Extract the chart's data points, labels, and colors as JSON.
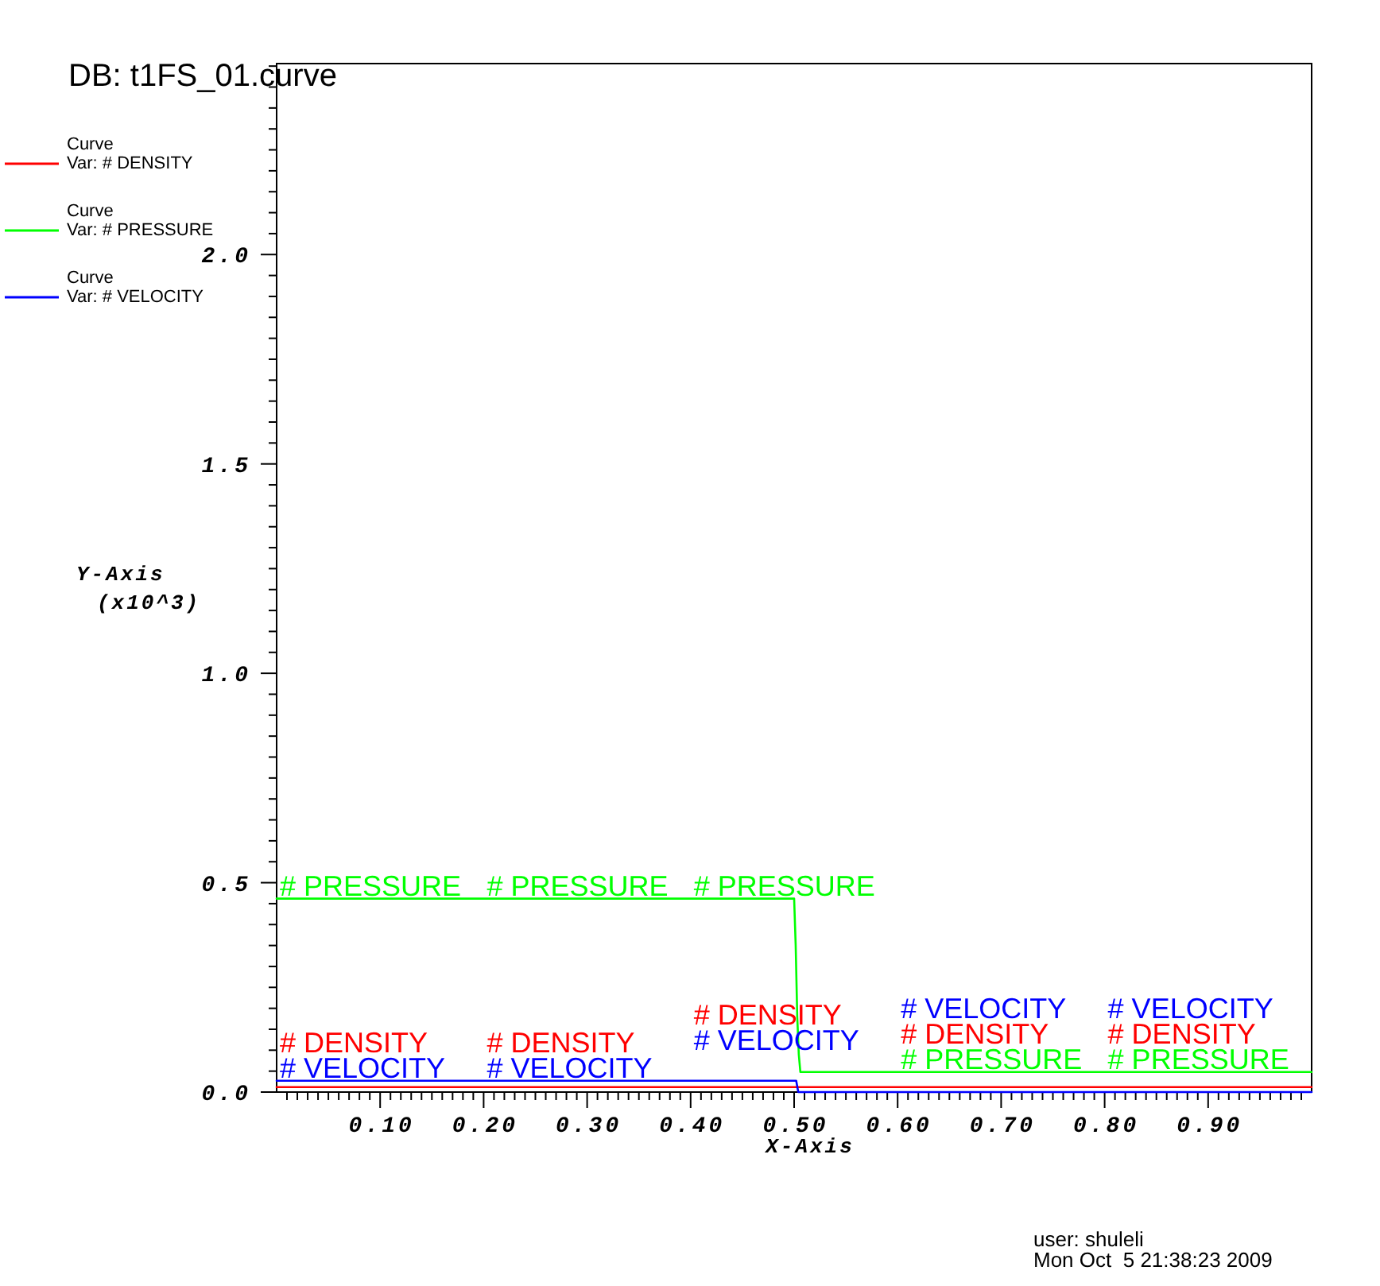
{
  "chart_data": {
    "type": "line",
    "title": "DB: t1FS_01.curve",
    "xlabel": "X-Axis",
    "ylabel": "Y-Axis\n(x10^3)",
    "xlim": [
      0,
      1
    ],
    "ylim": [
      0,
      2.456
    ],
    "xticks": [
      {
        "value": 0.01,
        "label": null
      },
      {
        "value": 0.02,
        "label": null
      },
      {
        "value": 0.03,
        "label": null
      },
      {
        "value": 0.04,
        "label": null
      },
      {
        "value": 0.05,
        "label": null
      },
      {
        "value": 0.06,
        "label": null
      },
      {
        "value": 0.07,
        "label": null
      },
      {
        "value": 0.08,
        "label": null
      },
      {
        "value": 0.09,
        "label": null
      },
      {
        "value": 0.1,
        "label": "0.10"
      },
      {
        "value": 0.11,
        "label": null
      },
      {
        "value": 0.12,
        "label": null
      },
      {
        "value": 0.13,
        "label": null
      },
      {
        "value": 0.14,
        "label": null
      },
      {
        "value": 0.15,
        "label": null
      },
      {
        "value": 0.16,
        "label": null
      },
      {
        "value": 0.17,
        "label": null
      },
      {
        "value": 0.18,
        "label": null
      },
      {
        "value": 0.19,
        "label": null
      },
      {
        "value": 0.2,
        "label": "0.20"
      },
      {
        "value": 0.21,
        "label": null
      },
      {
        "value": 0.22,
        "label": null
      },
      {
        "value": 0.23,
        "label": null
      },
      {
        "value": 0.24,
        "label": null
      },
      {
        "value": 0.25,
        "label": null
      },
      {
        "value": 0.26,
        "label": null
      },
      {
        "value": 0.27,
        "label": null
      },
      {
        "value": 0.28,
        "label": null
      },
      {
        "value": 0.29,
        "label": null
      },
      {
        "value": 0.3,
        "label": "0.30"
      },
      {
        "value": 0.31,
        "label": null
      },
      {
        "value": 0.32,
        "label": null
      },
      {
        "value": 0.33,
        "label": null
      },
      {
        "value": 0.34,
        "label": null
      },
      {
        "value": 0.35,
        "label": null
      },
      {
        "value": 0.36,
        "label": null
      },
      {
        "value": 0.37,
        "label": null
      },
      {
        "value": 0.38,
        "label": null
      },
      {
        "value": 0.39,
        "label": null
      },
      {
        "value": 0.4,
        "label": "0.40"
      },
      {
        "value": 0.41,
        "label": null
      },
      {
        "value": 0.42,
        "label": null
      },
      {
        "value": 0.43,
        "label": null
      },
      {
        "value": 0.44,
        "label": null
      },
      {
        "value": 0.45,
        "label": null
      },
      {
        "value": 0.46,
        "label": null
      },
      {
        "value": 0.47,
        "label": null
      },
      {
        "value": 0.48,
        "label": null
      },
      {
        "value": 0.49,
        "label": null
      },
      {
        "value": 0.5,
        "label": "0.50"
      },
      {
        "value": 0.51,
        "label": null
      },
      {
        "value": 0.52,
        "label": null
      },
      {
        "value": 0.53,
        "label": null
      },
      {
        "value": 0.54,
        "label": null
      },
      {
        "value": 0.55,
        "label": null
      },
      {
        "value": 0.56,
        "label": null
      },
      {
        "value": 0.57,
        "label": null
      },
      {
        "value": 0.58,
        "label": null
      },
      {
        "value": 0.59,
        "label": null
      },
      {
        "value": 0.6,
        "label": "0.60"
      },
      {
        "value": 0.61,
        "label": null
      },
      {
        "value": 0.62,
        "label": null
      },
      {
        "value": 0.63,
        "label": null
      },
      {
        "value": 0.64,
        "label": null
      },
      {
        "value": 0.65,
        "label": null
      },
      {
        "value": 0.66,
        "label": null
      },
      {
        "value": 0.67,
        "label": null
      },
      {
        "value": 0.68,
        "label": null
      },
      {
        "value": 0.69,
        "label": null
      },
      {
        "value": 0.7,
        "label": "0.70"
      },
      {
        "value": 0.71,
        "label": null
      },
      {
        "value": 0.72,
        "label": null
      },
      {
        "value": 0.73,
        "label": null
      },
      {
        "value": 0.74,
        "label": null
      },
      {
        "value": 0.75,
        "label": null
      },
      {
        "value": 0.76,
        "label": null
      },
      {
        "value": 0.77,
        "label": null
      },
      {
        "value": 0.78,
        "label": null
      },
      {
        "value": 0.79,
        "label": null
      },
      {
        "value": 0.8,
        "label": "0.80"
      },
      {
        "value": 0.81,
        "label": null
      },
      {
        "value": 0.82,
        "label": null
      },
      {
        "value": 0.83,
        "label": null
      },
      {
        "value": 0.84,
        "label": null
      },
      {
        "value": 0.85,
        "label": null
      },
      {
        "value": 0.86,
        "label": null
      },
      {
        "value": 0.87,
        "label": null
      },
      {
        "value": 0.88,
        "label": null
      },
      {
        "value": 0.89,
        "label": null
      },
      {
        "value": 0.9,
        "label": "0.90"
      },
      {
        "value": 0.91,
        "label": null
      },
      {
        "value": 0.92,
        "label": null
      },
      {
        "value": 0.93,
        "label": null
      },
      {
        "value": 0.94,
        "label": null
      },
      {
        "value": 0.95,
        "label": null
      },
      {
        "value": 0.96,
        "label": null
      },
      {
        "value": 0.97,
        "label": null
      },
      {
        "value": 0.98,
        "label": null
      },
      {
        "value": 0.99,
        "label": null
      }
    ],
    "yticks": [
      {
        "value": 0,
        "label": "0.0"
      },
      {
        "value": 0.05,
        "label": null
      },
      {
        "value": 0.1,
        "label": null
      },
      {
        "value": 0.15,
        "label": null
      },
      {
        "value": 0.2,
        "label": null
      },
      {
        "value": 0.25,
        "label": null
      },
      {
        "value": 0.3,
        "label": null
      },
      {
        "value": 0.35,
        "label": null
      },
      {
        "value": 0.4,
        "label": null
      },
      {
        "value": 0.45,
        "label": null
      },
      {
        "value": 0.5,
        "label": "0.5"
      },
      {
        "value": 0.55,
        "label": null
      },
      {
        "value": 0.6,
        "label": null
      },
      {
        "value": 0.65,
        "label": null
      },
      {
        "value": 0.7,
        "label": null
      },
      {
        "value": 0.75,
        "label": null
      },
      {
        "value": 0.8,
        "label": null
      },
      {
        "value": 0.85,
        "label": null
      },
      {
        "value": 0.9,
        "label": null
      },
      {
        "value": 0.95,
        "label": null
      },
      {
        "value": 1,
        "label": "1.0"
      },
      {
        "value": 1.05,
        "label": null
      },
      {
        "value": 1.1,
        "label": null
      },
      {
        "value": 1.15,
        "label": null
      },
      {
        "value": 1.2,
        "label": null
      },
      {
        "value": 1.25,
        "label": null
      },
      {
        "value": 1.3,
        "label": null
      },
      {
        "value": 1.35,
        "label": null
      },
      {
        "value": 1.4,
        "label": null
      },
      {
        "value": 1.45,
        "label": null
      },
      {
        "value": 1.5,
        "label": "1.5"
      },
      {
        "value": 1.55,
        "label": null
      },
      {
        "value": 1.6,
        "label": null
      },
      {
        "value": 1.65,
        "label": null
      },
      {
        "value": 1.7,
        "label": null
      },
      {
        "value": 1.75,
        "label": null
      },
      {
        "value": 1.8,
        "label": null
      },
      {
        "value": 1.85,
        "label": null
      },
      {
        "value": 1.9,
        "label": null
      },
      {
        "value": 1.95,
        "label": null
      },
      {
        "value": 2,
        "label": "2.0"
      },
      {
        "value": 2.05,
        "label": null
      },
      {
        "value": 2.1,
        "label": null
      },
      {
        "value": 2.15,
        "label": null
      },
      {
        "value": 2.2,
        "label": null
      },
      {
        "value": 2.25,
        "label": null
      },
      {
        "value": 2.3,
        "label": null
      },
      {
        "value": 2.35,
        "label": null
      },
      {
        "value": 2.4,
        "label": null
      },
      {
        "value": 2.45,
        "label": null
      }
    ],
    "legend": "top left",
    "series": [
      {
        "name": "Curve\nVar: # DENSITY",
        "color": "#ff0000",
        "x": [
          0,
          1
        ],
        "values": [
          0.012,
          0.012
        ]
      },
      {
        "name": "Curve\nVar: # PRESSURE",
        "color": "#00ff00",
        "x": [
          0,
          0.5,
          0.5015,
          0.503,
          0.5045,
          0.506,
          1
        ],
        "values": [
          0.462,
          0.462,
          0.35,
          0.18,
          0.09,
          0.048,
          0.048
        ]
      },
      {
        "name": "Curve\nVar: # VELOCITY",
        "color": "#0000ff",
        "x": [
          0,
          0.502,
          0.504,
          1
        ],
        "values": [
          0.027,
          0.027,
          0,
          0
        ]
      }
    ],
    "annotations": [
      {
        "text": "# PRESSURE",
        "x": 0,
        "y": 0.462
      },
      {
        "text": "# PRESSURE",
        "x": 0.2,
        "y": 0.462
      },
      {
        "text": "# PRESSURE",
        "x": 0.4,
        "y": 0.462
      },
      {
        "text": "# PRESSURE",
        "x": 0.6,
        "y": 0.048
      },
      {
        "text": "# PRESSURE",
        "x": 0.8,
        "y": 0.048
      },
      {
        "text": "# VELOCITY",
        "x": 0,
        "y": 0.027
      },
      {
        "text": "# VELOCITY",
        "x": 0.2,
        "y": 0.027
      },
      {
        "text": "# VELOCITY",
        "x": 0.4,
        "y": 0.027
      },
      {
        "text": "# VELOCITY",
        "x": 0.6,
        "y": 0
      },
      {
        "text": "# VELOCITY",
        "x": 0.8,
        "y": 0
      },
      {
        "text": "# DENSITY",
        "x": 0,
        "y": 0.012
      },
      {
        "text": "# DENSITY",
        "x": 0.2,
        "y": 0.012
      },
      {
        "text": "# DENSITY",
        "x": 0.4,
        "y": 0.012
      },
      {
        "text": "# DENSITY",
        "x": 0.6,
        "y": 0.012
      },
      {
        "text": "# DENSITY",
        "x": 0.8,
        "y": 0.012
      },
      "user: shuleli",
      "Mon Oct  5 21:38:23 2009"
    ]
  }
}
